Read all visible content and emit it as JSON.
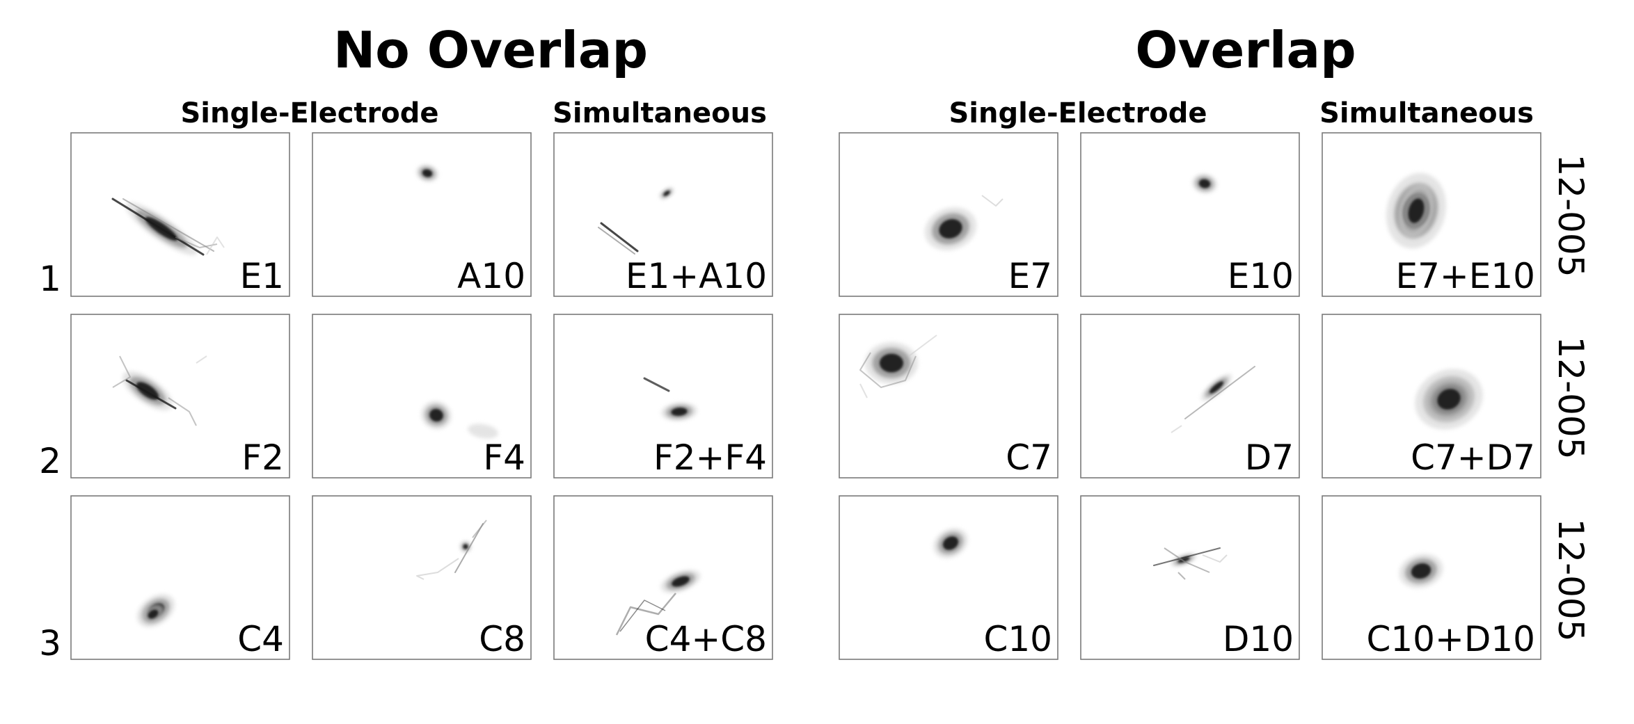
{
  "groups": [
    {
      "title": "No Overlap",
      "columns": [
        "Single-Electrode",
        "Simultaneous"
      ],
      "rows": [
        {
          "label": "1",
          "panels": [
            "E1",
            "A10",
            "E1+A10"
          ]
        },
        {
          "label": "2",
          "panels": [
            "F2",
            "F4",
            "F2+F4"
          ]
        },
        {
          "label": "3",
          "panels": [
            "C4",
            "C8",
            "C4+C8"
          ]
        }
      ]
    },
    {
      "title": "Overlap",
      "columns": [
        "Single-Electrode",
        "Simultaneous"
      ],
      "rows": [
        {
          "label": "",
          "panels": [
            "E7",
            "E10",
            "E7+E10"
          ]
        },
        {
          "label": "",
          "panels": [
            "C7",
            "D7",
            "C7+D7"
          ]
        },
        {
          "label": "",
          "panels": [
            "C10",
            "D10",
            "C10+D10"
          ]
        }
      ]
    }
  ],
  "subject_labels": [
    "12-005",
    "12-005",
    "12-005"
  ],
  "colors": {
    "ink": "#000000",
    "frame": "#7a7a7a",
    "blob_light": "#cfcfcf",
    "blob_mid": "#8a8a8a",
    "blob_dark": "#1a1a1a"
  }
}
